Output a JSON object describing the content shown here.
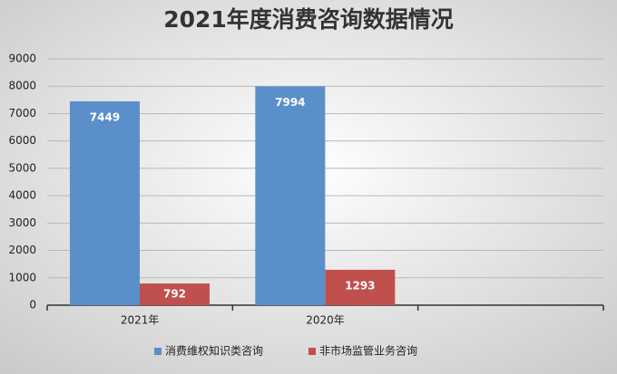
{
  "chart_data": {
    "type": "bar",
    "title": "2021年度消费咨询数据情况",
    "categories": [
      "2021年",
      "2020年",
      null
    ],
    "series": [
      {
        "name": "消费维权知识类咨询",
        "color": "#5b8fc9",
        "values": [
          7449,
          7994,
          null
        ]
      },
      {
        "name": "非市场监管业务咨询",
        "color": "#c0504d",
        "values": [
          792,
          1293,
          null
        ]
      }
    ],
    "ylim": [
      0,
      9000
    ],
    "yticks": [
      0,
      1000,
      2000,
      3000,
      4000,
      5000,
      6000,
      7000,
      8000,
      9000
    ],
    "grid": true,
    "legend": "bottom"
  }
}
